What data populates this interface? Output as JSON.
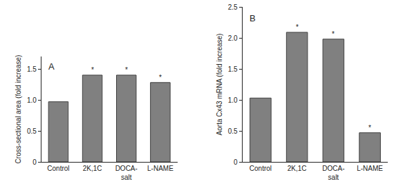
{
  "chart_data": [
    {
      "type": "bar",
      "title": "A",
      "y_label": "Cross-sectional area (fold increase)",
      "categories": [
        "Control",
        "2K,1C",
        "DOCA-\nsalt",
        "L-NAME"
      ],
      "values": [
        0.97,
        1.4,
        1.4,
        1.28
      ],
      "color": "#808080",
      "ylim": [
        0,
        1.7
      ],
      "yticks": [
        0,
        0.5,
        {
          "value": 1,
          "label": "1.0"
        },
        1.5
      ],
      "grid": false,
      "annotations": [
        {
          "category": "2K,1C",
          "text": "*"
        },
        {
          "category": "DOCA-\nsalt",
          "text": "*"
        },
        {
          "category": "L-NAME",
          "text": "*"
        }
      ]
    },
    {
      "type": "bar",
      "title": "B",
      "y_label": "Aorta Cx43 mRNA (fold increase)",
      "categories": [
        "Control",
        "2K,1C",
        "DOCA-\nsalt",
        "L-NAME"
      ],
      "values": [
        1.03,
        2.09,
        1.98,
        0.47
      ],
      "color": "#808080",
      "ylim": [
        0,
        2.5
      ],
      "yticks": [
        0,
        0.5,
        {
          "value": 1,
          "label": "1.0"
        },
        1.5,
        {
          "value": 2,
          "label": "2.0"
        },
        2.5
      ],
      "grid": false,
      "annotations": [
        {
          "category": "2K,1C",
          "text": "*"
        },
        {
          "category": "DOCA-\nsalt",
          "text": "*"
        },
        {
          "category": "L-NAME",
          "text": "*"
        }
      ]
    }
  ]
}
